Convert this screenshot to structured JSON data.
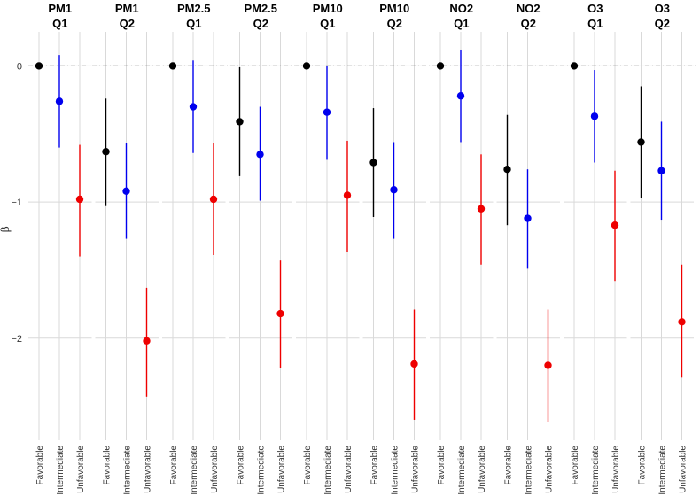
{
  "chart_data": {
    "type": "errorbar",
    "ylabel": "β",
    "ylim": [
      -2.75,
      0.25
    ],
    "yticks": [
      0,
      -1,
      -2
    ],
    "ytick_labels": [
      "0",
      "−1",
      "−2"
    ],
    "reference_line": 0,
    "categories": [
      "Favorable",
      "Intermediate",
      "Unfavorable"
    ],
    "category_colors": {
      "Favorable": "#000000",
      "Intermediate": "#0000ee",
      "Unfavorable": "#ee0000"
    },
    "facets": [
      {
        "pollutant": "PM1",
        "quantile": "Q1",
        "points": [
          {
            "category": "Favorable",
            "estimate": 0,
            "lower": 0,
            "upper": 0
          },
          {
            "category": "Intermediate",
            "estimate": -0.26,
            "lower": -0.6,
            "upper": 0.08
          },
          {
            "category": "Unfavorable",
            "estimate": -0.98,
            "lower": -1.4,
            "upper": -0.58
          }
        ]
      },
      {
        "pollutant": "PM1",
        "quantile": "Q2",
        "points": [
          {
            "category": "Favorable",
            "estimate": -0.63,
            "lower": -1.03,
            "upper": -0.24
          },
          {
            "category": "Intermediate",
            "estimate": -0.92,
            "lower": -1.27,
            "upper": -0.57
          },
          {
            "category": "Unfavorable",
            "estimate": -2.02,
            "lower": -2.43,
            "upper": -1.63
          }
        ]
      },
      {
        "pollutant": "PM2.5",
        "quantile": "Q1",
        "points": [
          {
            "category": "Favorable",
            "estimate": 0,
            "lower": 0,
            "upper": 0
          },
          {
            "category": "Intermediate",
            "estimate": -0.3,
            "lower": -0.64,
            "upper": 0.04
          },
          {
            "category": "Unfavorable",
            "estimate": -0.98,
            "lower": -1.39,
            "upper": -0.57
          }
        ]
      },
      {
        "pollutant": "PM2.5",
        "quantile": "Q2",
        "points": [
          {
            "category": "Favorable",
            "estimate": -0.41,
            "lower": -0.81,
            "upper": -0.01
          },
          {
            "category": "Intermediate",
            "estimate": -0.65,
            "lower": -0.99,
            "upper": -0.3
          },
          {
            "category": "Unfavorable",
            "estimate": -1.82,
            "lower": -2.22,
            "upper": -1.43
          }
        ]
      },
      {
        "pollutant": "PM10",
        "quantile": "Q1",
        "points": [
          {
            "category": "Favorable",
            "estimate": 0,
            "lower": 0,
            "upper": 0
          },
          {
            "category": "Intermediate",
            "estimate": -0.34,
            "lower": -0.69,
            "upper": 0.0
          },
          {
            "category": "Unfavorable",
            "estimate": -0.95,
            "lower": -1.37,
            "upper": -0.55
          }
        ]
      },
      {
        "pollutant": "PM10",
        "quantile": "Q2",
        "points": [
          {
            "category": "Favorable",
            "estimate": -0.71,
            "lower": -1.11,
            "upper": -0.31
          },
          {
            "category": "Intermediate",
            "estimate": -0.91,
            "lower": -1.27,
            "upper": -0.56
          },
          {
            "category": "Unfavorable",
            "estimate": -2.19,
            "lower": -2.6,
            "upper": -1.79
          }
        ]
      },
      {
        "pollutant": "NO2",
        "quantile": "Q1",
        "points": [
          {
            "category": "Favorable",
            "estimate": 0,
            "lower": 0,
            "upper": 0
          },
          {
            "category": "Intermediate",
            "estimate": -0.22,
            "lower": -0.56,
            "upper": 0.12
          },
          {
            "category": "Unfavorable",
            "estimate": -1.05,
            "lower": -1.46,
            "upper": -0.65
          }
        ]
      },
      {
        "pollutant": "NO2",
        "quantile": "Q2",
        "points": [
          {
            "category": "Favorable",
            "estimate": -0.76,
            "lower": -1.17,
            "upper": -0.36
          },
          {
            "category": "Intermediate",
            "estimate": -1.12,
            "lower": -1.49,
            "upper": -0.76
          },
          {
            "category": "Unfavorable",
            "estimate": -2.2,
            "lower": -2.62,
            "upper": -1.79
          }
        ]
      },
      {
        "pollutant": "O3",
        "quantile": "Q1",
        "points": [
          {
            "category": "Favorable",
            "estimate": 0,
            "lower": 0,
            "upper": 0
          },
          {
            "category": "Intermediate",
            "estimate": -0.37,
            "lower": -0.71,
            "upper": -0.03
          },
          {
            "category": "Unfavorable",
            "estimate": -1.17,
            "lower": -1.58,
            "upper": -0.77
          }
        ]
      },
      {
        "pollutant": "O3",
        "quantile": "Q2",
        "points": [
          {
            "category": "Favorable",
            "estimate": -0.56,
            "lower": -0.97,
            "upper": -0.15
          },
          {
            "category": "Intermediate",
            "estimate": -0.77,
            "lower": -1.13,
            "upper": -0.41
          },
          {
            "category": "Unfavorable",
            "estimate": -1.88,
            "lower": -2.29,
            "upper": -1.46
          }
        ]
      }
    ]
  }
}
